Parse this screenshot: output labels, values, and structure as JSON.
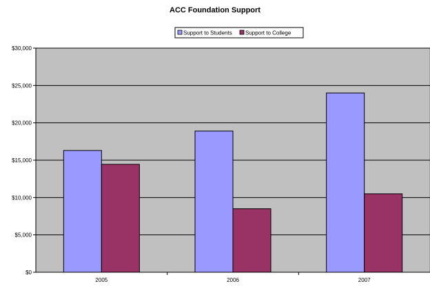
{
  "chart_data": {
    "type": "bar",
    "title": "ACC Foundation Support",
    "xlabel": "",
    "ylabel": "",
    "categories": [
      "2005",
      "2006",
      "2007"
    ],
    "series": [
      {
        "name": "Support to Students",
        "values": [
          16300,
          18900,
          24000
        ],
        "color": "#9999ff"
      },
      {
        "name": "Support to College",
        "values": [
          14450,
          8500,
          10500
        ],
        "color": "#993366"
      }
    ],
    "ylim": [
      0,
      30000
    ],
    "y_ticks": [
      0,
      5000,
      10000,
      15000,
      20000,
      25000,
      30000
    ],
    "y_tick_labels": [
      "$0",
      "$5,000",
      "$10,000",
      "$15,000",
      "$20,000",
      "$25,000",
      "$30,000"
    ],
    "grid": true,
    "plot_background": "#c0c0c0",
    "legend_position": "top-center"
  }
}
